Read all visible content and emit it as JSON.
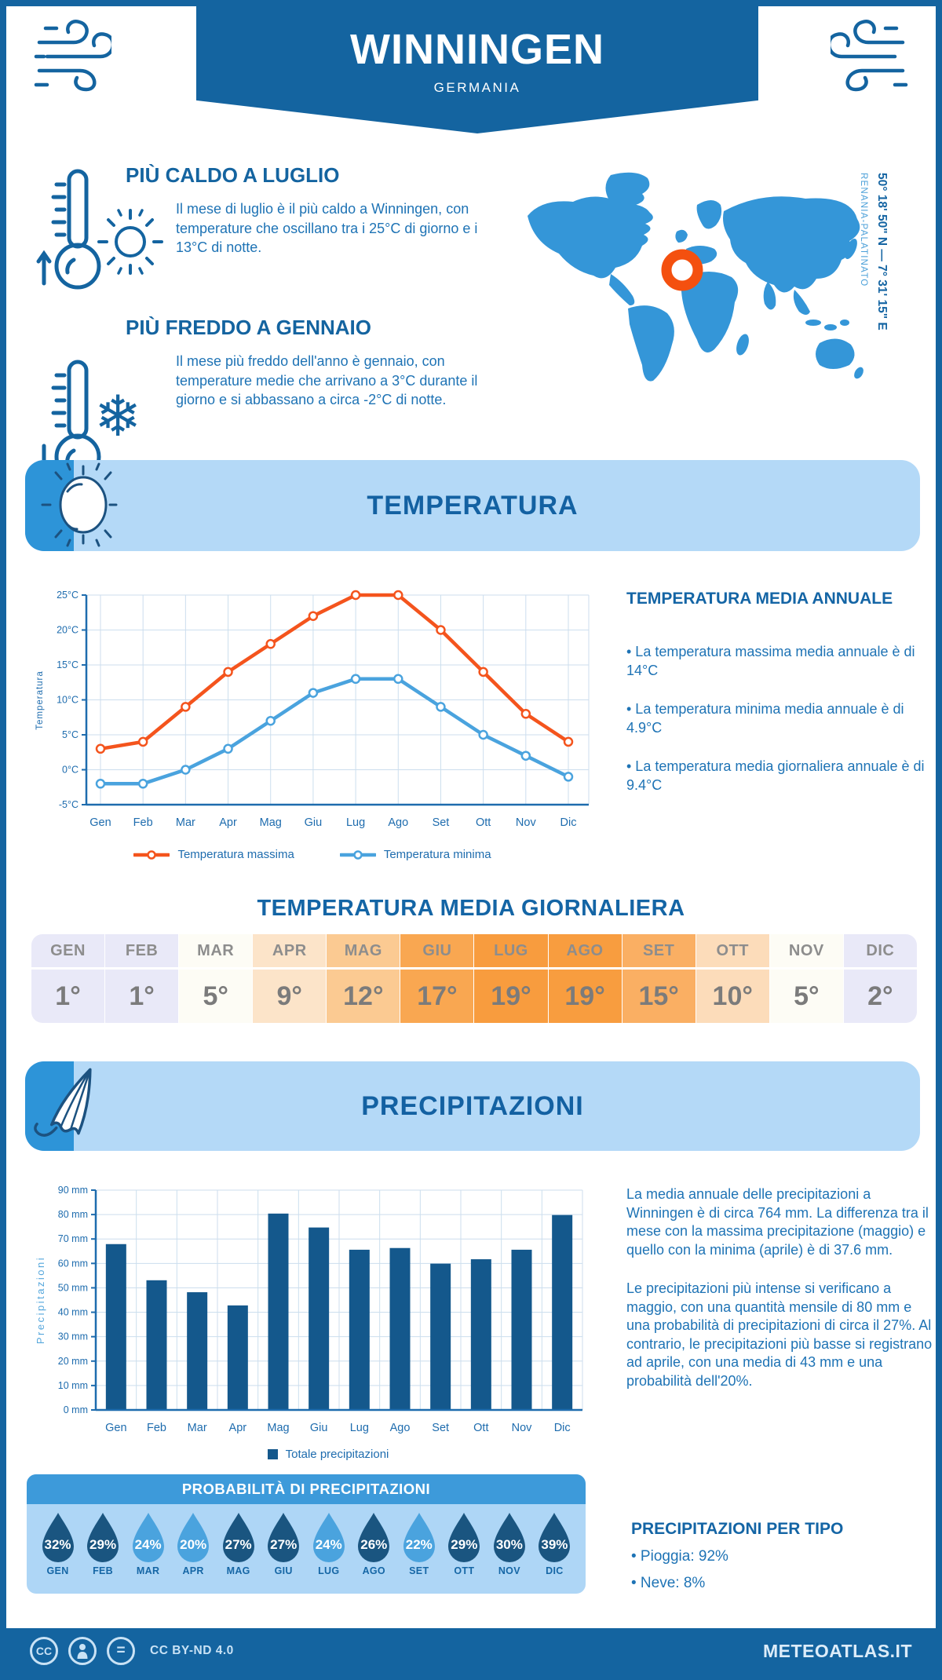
{
  "header": {
    "title": "WINNINGEN",
    "subtitle": "GERMANIA"
  },
  "highlights": [
    {
      "title": "PIÙ CALDO A LUGLIO",
      "text": "Il mese di luglio è il più caldo a Winningen, con temperature che oscillano tra i 25°C di giorno e i 13°C di notte."
    },
    {
      "title": "PIÙ FREDDO A GENNAIO",
      "text": "Il mese più freddo dell'anno è gennaio, con temperature medie che arrivano a 3°C durante il giorno e si abbassano a circa -2°C di notte."
    }
  ],
  "map": {
    "coordinates": "50° 18' 50\" N — 7° 31' 15\" E",
    "region": "RENANIA-PALATINATO",
    "land_color": "#3496d8",
    "marker_color": "#f4500f"
  },
  "sections": {
    "temperature_title": "TEMPERATURA",
    "precipitation_title": "PRECIPITAZIONI"
  },
  "annual_summary": {
    "heading": "TEMPERATURA MEDIA ANNUALE",
    "bullets": [
      "• La temperatura massima media annuale è di 14°C",
      "• La temperatura minima media annuale è di 4.9°C",
      "• La temperatura media giornaliera annuale è di 9.4°C"
    ]
  },
  "daily_table": {
    "heading": "TEMPERATURA MEDIA GIORNALIERA",
    "columns": [
      {
        "month": "GEN",
        "value": "1°",
        "bg": "#e9e9f8"
      },
      {
        "month": "FEB",
        "value": "1°",
        "bg": "#e9e9f8"
      },
      {
        "month": "MAR",
        "value": "5°",
        "bg": "#fdfcf5"
      },
      {
        "month": "APR",
        "value": "9°",
        "bg": "#fce4c9"
      },
      {
        "month": "MAG",
        "value": "12°",
        "bg": "#fbca92"
      },
      {
        "month": "GIU",
        "value": "17°",
        "bg": "#f9a751"
      },
      {
        "month": "LUG",
        "value": "19°",
        "bg": "#f89c3e"
      },
      {
        "month": "AGO",
        "value": "19°",
        "bg": "#f89d3f"
      },
      {
        "month": "SET",
        "value": "15°",
        "bg": "#faaf63"
      },
      {
        "month": "OTT",
        "value": "10°",
        "bg": "#fcdcba"
      },
      {
        "month": "NOV",
        "value": "5°",
        "bg": "#fdfcf5"
      },
      {
        "month": "DIC",
        "value": "2°",
        "bg": "#e9e9f8"
      }
    ]
  },
  "precip_text": {
    "p1": "La media annuale delle precipitazioni a Winningen è di circa 764 mm. La differenza tra il mese con la massima precipitazione (maggio) e quello con la minima (aprile) è di 37.6 mm.",
    "p2": "Le precipitazioni più intense si verificano a maggio, con una quantità mensile di 80 mm e una probabilità di precipitazioni di circa il 27%. Al contrario, le precipitazioni più basse si registrano ad aprile, con una media di 43 mm e una probabilità dell'20%."
  },
  "probability": {
    "title": "PROBABILITÀ DI PRECIPITAZIONI",
    "drops": [
      {
        "month": "GEN",
        "value": "32%",
        "shade": "dark"
      },
      {
        "month": "FEB",
        "value": "29%",
        "shade": "dark"
      },
      {
        "month": "MAR",
        "value": "24%",
        "shade": "light"
      },
      {
        "month": "APR",
        "value": "20%",
        "shade": "light"
      },
      {
        "month": "MAG",
        "value": "27%",
        "shade": "dark"
      },
      {
        "month": "GIU",
        "value": "27%",
        "shade": "dark"
      },
      {
        "month": "LUG",
        "value": "24%",
        "shade": "light"
      },
      {
        "month": "AGO",
        "value": "26%",
        "shade": "dark"
      },
      {
        "month": "SET",
        "value": "22%",
        "shade": "light"
      },
      {
        "month": "OTT",
        "value": "29%",
        "shade": "dark"
      },
      {
        "month": "NOV",
        "value": "30%",
        "shade": "dark"
      },
      {
        "month": "DIC",
        "value": "39%",
        "shade": "dark"
      }
    ]
  },
  "per_tipo": {
    "heading": "PRECIPITAZIONI PER TIPO",
    "bullets": [
      "• Pioggia: 92%",
      "• Neve: 8%"
    ]
  },
  "footer": {
    "license": "CC BY-ND 4.0",
    "brand": "METEOATLAS.IT"
  },
  "chart_data": [
    {
      "type": "line",
      "categories": [
        "Gen",
        "Feb",
        "Mar",
        "Apr",
        "Mag",
        "Giu",
        "Lug",
        "Ago",
        "Set",
        "Ott",
        "Nov",
        "Dic"
      ],
      "series": [
        {
          "name": "Temperatura massima",
          "color": "#f4541d",
          "values": [
            3,
            4,
            9,
            14,
            18,
            22,
            25,
            25,
            20,
            14,
            8,
            4
          ]
        },
        {
          "name": "Temperatura minima",
          "color": "#4aa3de",
          "values": [
            -2,
            -2,
            0,
            3,
            7,
            11,
            13,
            13,
            9,
            5,
            2,
            -1
          ]
        }
      ],
      "ylabel": "Temperatura",
      "ylim": [
        -5,
        25
      ],
      "ystep": 5,
      "yunit": "°C",
      "grid": true,
      "legend_position": "bottom"
    },
    {
      "type": "bar",
      "categories": [
        "Gen",
        "Feb",
        "Mar",
        "Apr",
        "Mag",
        "Giu",
        "Lug",
        "Ago",
        "Set",
        "Ott",
        "Nov",
        "Dic"
      ],
      "values": [
        67.9,
        53.1,
        48.2,
        42.8,
        80.4,
        74.7,
        65.6,
        66.3,
        59.9,
        61.7,
        65.6,
        79.8
      ],
      "series_name": "Totale precipitazioni",
      "color": "#14588c",
      "ylabel": "Precipitazioni",
      "ylim": [
        0,
        90
      ],
      "ystep": 10,
      "yunit": " mm",
      "grid": true,
      "legend_position": "bottom"
    }
  ]
}
